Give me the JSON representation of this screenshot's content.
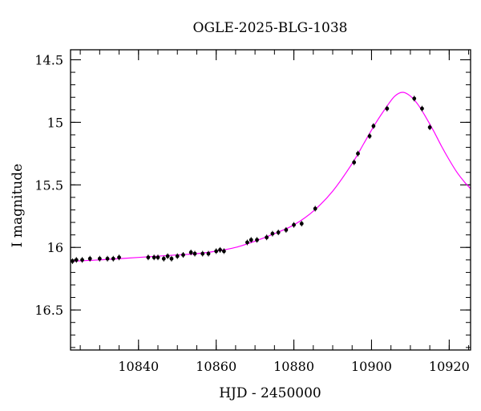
{
  "chart_data": {
    "type": "scatter",
    "title": "OGLE-2025-BLG-1038",
    "xlabel": "HJD - 2450000",
    "ylabel": "I magnitude",
    "xlim": [
      10822.5,
      10925.5
    ],
    "ylim": [
      16.82,
      14.42
    ],
    "y_inverted": true,
    "x_ticks": [
      10840,
      10860,
      10880,
      10900,
      10920
    ],
    "x_minor_step": 5,
    "y_ticks": [
      14.5,
      15,
      15.5,
      16,
      16.5
    ],
    "y_tick_labels": [
      "14.5",
      "15",
      "15.5",
      "16",
      "16.5"
    ],
    "y_minor_step": 0.1,
    "grid": false,
    "colors": {
      "points": "#000000",
      "model": "#ff00ff",
      "axes": "#000000"
    },
    "series": [
      {
        "kind": "observations",
        "points": [
          {
            "x": 10823.0,
            "y": 16.11
          },
          {
            "x": 10824.0,
            "y": 16.1
          },
          {
            "x": 10825.5,
            "y": 16.1
          },
          {
            "x": 10827.5,
            "y": 16.09
          },
          {
            "x": 10830.0,
            "y": 16.09
          },
          {
            "x": 10832.0,
            "y": 16.09
          },
          {
            "x": 10833.5,
            "y": 16.09
          },
          {
            "x": 10835.0,
            "y": 16.08
          },
          {
            "x": 10842.5,
            "y": 16.08
          },
          {
            "x": 10844.0,
            "y": 16.08
          },
          {
            "x": 10845.0,
            "y": 16.08
          },
          {
            "x": 10846.5,
            "y": 16.09
          },
          {
            "x": 10847.5,
            "y": 16.07
          },
          {
            "x": 10848.5,
            "y": 16.09
          },
          {
            "x": 10850.0,
            "y": 16.07
          },
          {
            "x": 10851.5,
            "y": 16.06
          },
          {
            "x": 10853.5,
            "y": 16.04
          },
          {
            "x": 10854.5,
            "y": 16.05
          },
          {
            "x": 10856.5,
            "y": 16.05
          },
          {
            "x": 10858.0,
            "y": 16.05
          },
          {
            "x": 10860.0,
            "y": 16.03
          },
          {
            "x": 10861.0,
            "y": 16.02
          },
          {
            "x": 10862.0,
            "y": 16.03
          },
          {
            "x": 10868.0,
            "y": 15.96
          },
          {
            "x": 10869.0,
            "y": 15.94
          },
          {
            "x": 10870.5,
            "y": 15.94
          },
          {
            "x": 10873.0,
            "y": 15.92
          },
          {
            "x": 10874.5,
            "y": 15.89
          },
          {
            "x": 10876.0,
            "y": 15.88
          },
          {
            "x": 10878.0,
            "y": 15.86
          },
          {
            "x": 10880.0,
            "y": 15.82
          },
          {
            "x": 10882.0,
            "y": 15.81
          },
          {
            "x": 10885.5,
            "y": 15.69
          },
          {
            "x": 10895.5,
            "y": 15.32
          },
          {
            "x": 10896.5,
            "y": 15.25
          },
          {
            "x": 10899.5,
            "y": 15.11
          },
          {
            "x": 10900.5,
            "y": 15.03
          },
          {
            "x": 10904.0,
            "y": 14.89
          },
          {
            "x": 10911.0,
            "y": 14.81
          },
          {
            "x": 10913.0,
            "y": 14.89
          },
          {
            "x": 10915.0,
            "y": 15.04
          }
        ]
      },
      {
        "kind": "model",
        "points": [
          {
            "x": 10822.5,
            "y": 16.11
          },
          {
            "x": 10830,
            "y": 16.1
          },
          {
            "x": 10840,
            "y": 16.08
          },
          {
            "x": 10850,
            "y": 16.06
          },
          {
            "x": 10855,
            "y": 16.05
          },
          {
            "x": 10860,
            "y": 16.03
          },
          {
            "x": 10865,
            "y": 16.0
          },
          {
            "x": 10870,
            "y": 15.95
          },
          {
            "x": 10875,
            "y": 15.89
          },
          {
            "x": 10880,
            "y": 15.82
          },
          {
            "x": 10885,
            "y": 15.71
          },
          {
            "x": 10890,
            "y": 15.55
          },
          {
            "x": 10895,
            "y": 15.33
          },
          {
            "x": 10898,
            "y": 15.17
          },
          {
            "x": 10901,
            "y": 15.01
          },
          {
            "x": 10904,
            "y": 14.87
          },
          {
            "x": 10906,
            "y": 14.79
          },
          {
            "x": 10908,
            "y": 14.76
          },
          {
            "x": 10910,
            "y": 14.79
          },
          {
            "x": 10912,
            "y": 14.86
          },
          {
            "x": 10914,
            "y": 14.96
          },
          {
            "x": 10916,
            "y": 15.07
          },
          {
            "x": 10918,
            "y": 15.19
          },
          {
            "x": 10920,
            "y": 15.3
          },
          {
            "x": 10922,
            "y": 15.4
          },
          {
            "x": 10924,
            "y": 15.48
          },
          {
            "x": 10925.5,
            "y": 15.53
          }
        ]
      }
    ]
  }
}
